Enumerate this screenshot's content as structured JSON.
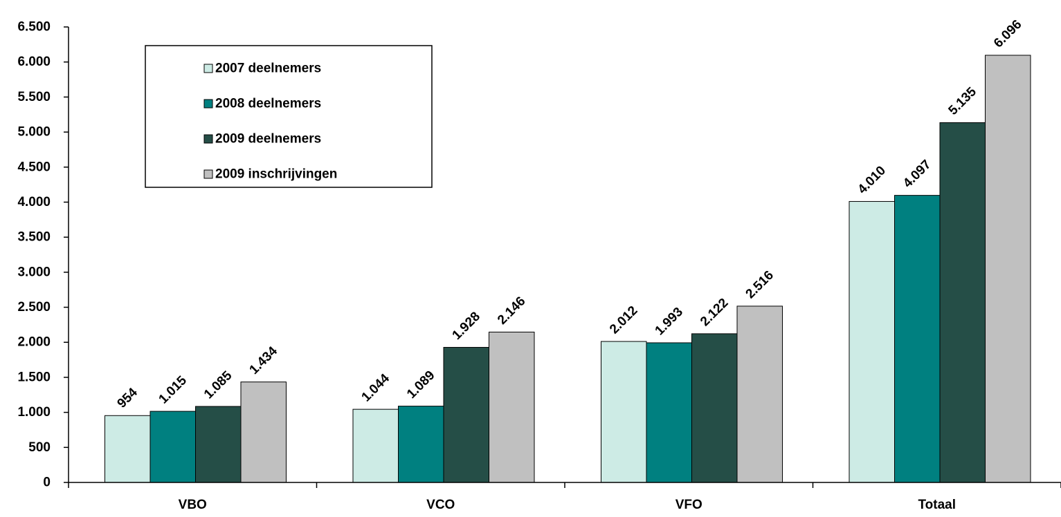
{
  "chart_data": {
    "type": "bar",
    "categories": [
      "VBO",
      "VCO",
      "VFO",
      "Totaal"
    ],
    "series": [
      {
        "name": "2007 deelnemers",
        "values": [
          954,
          1044,
          2012,
          4010
        ],
        "color": "#cdebe5"
      },
      {
        "name": "2008 deelnemers",
        "values": [
          1015,
          1089,
          1993,
          4097
        ],
        "color": "#008080"
      },
      {
        "name": "2009 deelnemers",
        "values": [
          1085,
          1928,
          2122,
          5135
        ],
        "color": "#254e47"
      },
      {
        "name": "2009 inschrijvingen",
        "values": [
          1434,
          2146,
          2516,
          6096
        ],
        "color": "#c0c0c0"
      }
    ],
    "data_labels": [
      [
        "954",
        "1.044",
        "2.012",
        "4.010"
      ],
      [
        "1.015",
        "1.089",
        "1.993",
        "4.097"
      ],
      [
        "1.085",
        "1.928",
        "2.122",
        "5.135"
      ],
      [
        "1.434",
        "2.146",
        "2.516",
        "6.096"
      ]
    ],
    "y_ticks": [
      {
        "value": 0,
        "label": "0"
      },
      {
        "value": 500,
        "label": "500"
      },
      {
        "value": 1000,
        "label": "1.000"
      },
      {
        "value": 1500,
        "label": "1.500"
      },
      {
        "value": 2000,
        "label": "2.000"
      },
      {
        "value": 2500,
        "label": "2.500"
      },
      {
        "value": 3000,
        "label": "3.000"
      },
      {
        "value": 3500,
        "label": "3.500"
      },
      {
        "value": 4000,
        "label": "4.000"
      },
      {
        "value": 4500,
        "label": "4.500"
      },
      {
        "value": 5000,
        "label": "5.000"
      },
      {
        "value": 5500,
        "label": "5.500"
      },
      {
        "value": 6000,
        "label": "6.000"
      },
      {
        "value": 6500,
        "label": "6.500"
      }
    ],
    "ylim": [
      0,
      6500
    ],
    "grid": false,
    "legend_position": "top-left"
  }
}
